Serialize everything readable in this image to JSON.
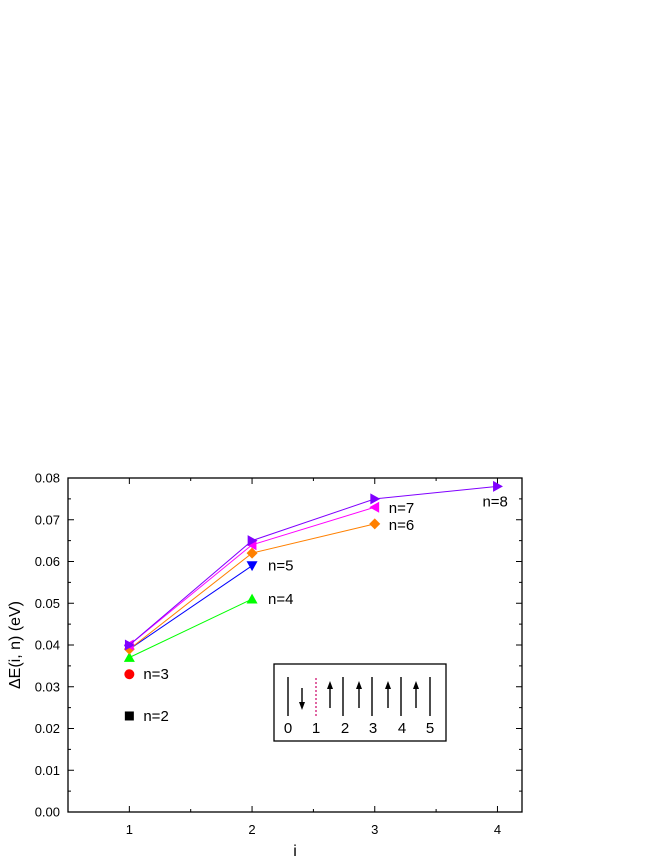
{
  "chart_data": {
    "type": "line",
    "xlabel": "i",
    "ylabel": "ΔE(i, n) (eV)",
    "xlim": [
      0.5,
      4.2
    ],
    "ylim": [
      0,
      0.08
    ],
    "xticks": [
      1,
      2,
      3,
      4
    ],
    "yticks": [
      0.0,
      0.01,
      0.02,
      0.03,
      0.04,
      0.05,
      0.06,
      0.07,
      0.08
    ],
    "xtick_labels": [
      "1",
      "2",
      "3",
      "4"
    ],
    "ytick_labels": [
      "0.00",
      "0.01",
      "0.02",
      "0.03",
      "0.04",
      "0.05",
      "0.06",
      "0.07",
      "0.08"
    ],
    "grid": false,
    "series": [
      {
        "name": "n=2",
        "color": "#000000",
        "marker": "square",
        "x": [
          1
        ],
        "y": [
          0.023
        ]
      },
      {
        "name": "n=3",
        "color": "#ff0000",
        "marker": "circle",
        "x": [
          1
        ],
        "y": [
          0.033
        ]
      },
      {
        "name": "n=4",
        "color": "#00ff00",
        "marker": "triangle-up",
        "x": [
          1,
          2
        ],
        "y": [
          0.037,
          0.051
        ]
      },
      {
        "name": "n=5",
        "color": "#0000ff",
        "marker": "triangle-down",
        "x": [
          1,
          2
        ],
        "y": [
          0.039,
          0.059
        ]
      },
      {
        "name": "n=6",
        "color": "#ff8000",
        "marker": "diamond",
        "x": [
          1,
          2,
          3
        ],
        "y": [
          0.039,
          0.062,
          0.069
        ]
      },
      {
        "name": "n=7",
        "color": "#ff00ff",
        "marker": "triangle-left",
        "x": [
          1,
          2,
          3
        ],
        "y": [
          0.04,
          0.064,
          0.073
        ]
      },
      {
        "name": "n=8",
        "color": "#8000ff",
        "marker": "triangle-right",
        "x": [
          1,
          2,
          3,
          4
        ],
        "y": [
          0.04,
          0.065,
          0.075,
          0.078
        ]
      }
    ],
    "inset": {
      "spin_labels": [
        "0",
        "1",
        "2",
        "3",
        "4",
        "5"
      ],
      "spins": [
        "down",
        "up",
        "up",
        "up",
        "up"
      ]
    }
  }
}
